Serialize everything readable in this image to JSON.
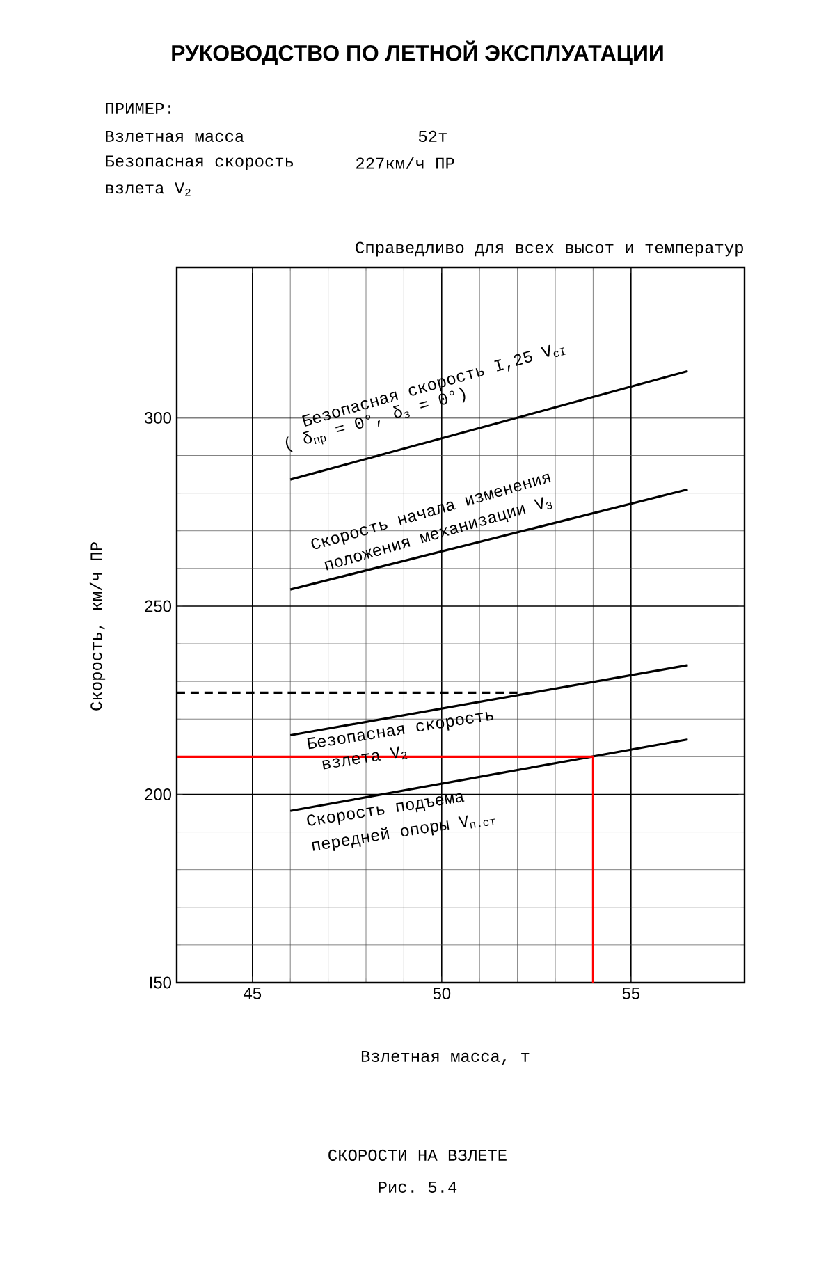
{
  "chart_data": {
    "type": "line",
    "title": "РУКОВОДСТВО ПО ЛЕТНОЙ ЭКСПЛУАТАЦИИ",
    "subtitle": "Справедливо для всех высот и температур",
    "xlabel": "Взлетная масса, т",
    "ylabel": "Скорость, км/ч ПР",
    "xlim": [
      43,
      58
    ],
    "ylim": [
      150,
      340
    ],
    "xticks": [
      45,
      50,
      55
    ],
    "yticks": [
      {
        "value": 150,
        "label": "I50"
      },
      200,
      250,
      300
    ],
    "grid": true,
    "series": [
      {
        "color": "#000000",
        "x": [
          46,
          56.5
        ],
        "values": [
          283.6,
          312.4
        ]
      },
      {
        "color": "#000000",
        "x": [
          46,
          56.5
        ],
        "values": [
          254.4,
          281
        ]
      },
      {
        "color": "#000000",
        "x": [
          46,
          56.5
        ],
        "values": [
          215.7,
          234.3
        ]
      },
      {
        "color": "#000000",
        "x": [
          46,
          56.5
        ],
        "values": [
          195.6,
          214.6
        ]
      },
      {
        "color": "#ff0000",
        "x": [
          54,
          54,
          43
        ],
        "values": [
          150,
          210,
          210
        ]
      },
      {
        "color": "#000000",
        "x": [
          43,
          52
        ],
        "values": [
          227,
          227
        ],
        "line_style": "dashed"
      }
    ],
    "annotations": [
      "ПРИМЕР:",
      "Взлетная масса",
      "52т",
      "Безопасная скорость",
      "227км/ч ПР",
      "взлета V$_{2}$",
      "СКОРОСТИ НА ВЗЛЕТЕ",
      "Рис. 5.4",
      "Безопасная скорость I,25 V$_{cI}$",
      "( δ$_{пр}$ = 0°,  δ$_{з}$ = 0°)",
      "Скорость начала изменения",
      "положения механизации V$_{3}$",
      "Безопасная скорость",
      "взлета V$_{2}$",
      "Скорость подъема",
      "передней опоры V$_{п.ст}$"
    ]
  }
}
